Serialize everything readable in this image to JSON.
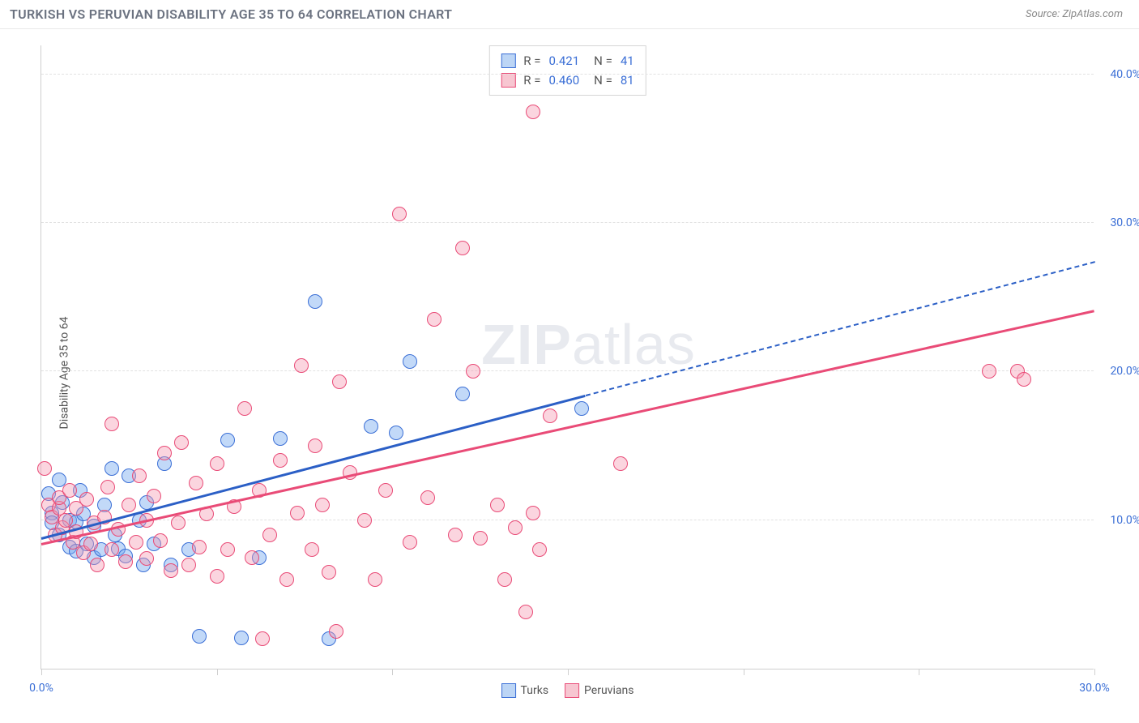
{
  "header": {
    "title": "TURKISH VS PERUVIAN DISABILITY AGE 35 TO 64 CORRELATION CHART",
    "source_prefix": "Source: ",
    "source_name": "ZipAtlas.com"
  },
  "chart": {
    "type": "scatter",
    "ylabel": "Disability Age 35 to 64",
    "watermark_a": "ZIP",
    "watermark_b": "atlas",
    "background_color": "#ffffff",
    "grid_color": "#e2e2e2",
    "axis_color": "#cfcfcf",
    "tick_label_color": "#3b6fd6",
    "xlim": [
      0,
      30
    ],
    "ylim": [
      0,
      42
    ],
    "yticks": [
      {
        "v": 10,
        "label": "10.0%"
      },
      {
        "v": 20,
        "label": "20.0%"
      },
      {
        "v": 30,
        "label": "30.0%"
      },
      {
        "v": 40,
        "label": "40.0%"
      }
    ],
    "xticks_major": [
      0,
      5,
      10,
      15,
      20,
      25,
      30
    ],
    "xtick_labels": [
      {
        "v": 0,
        "label": "0.0%"
      },
      {
        "v": 30,
        "label": "30.0%"
      }
    ],
    "legend": {
      "r_label": "R =",
      "n_label": "N =",
      "rows": [
        {
          "swatch_fill": "#bcd5f5",
          "swatch_stroke": "#3b6fd6",
          "r": "0.421",
          "n": "41"
        },
        {
          "swatch_fill": "#f7c6d1",
          "swatch_stroke": "#e94b77",
          "r": "0.460",
          "n": "81"
        }
      ]
    },
    "bottom_legend": [
      {
        "swatch_fill": "#bcd5f5",
        "swatch_stroke": "#3b6fd6",
        "label": "Turks"
      },
      {
        "swatch_fill": "#f7c6d1",
        "swatch_stroke": "#e94b77",
        "label": "Peruvians"
      }
    ],
    "series": [
      {
        "name": "Turks",
        "dot_fill": "rgba(120,170,240,0.45)",
        "dot_stroke": "#3b6fd6",
        "dot_radius": 9,
        "line_color": "#2b5fc6",
        "trend": {
          "x1": 0,
          "y1": 8.7,
          "x2_solid": 15.5,
          "x2_dash": 30,
          "y2": 27.3
        },
        "points": [
          [
            0.2,
            11.8
          ],
          [
            0.3,
            10.5
          ],
          [
            0.3,
            9.8
          ],
          [
            0.5,
            12.7
          ],
          [
            0.5,
            9.0
          ],
          [
            0.6,
            11.2
          ],
          [
            0.8,
            8.2
          ],
          [
            0.8,
            10.0
          ],
          [
            1.0,
            9.9
          ],
          [
            1.0,
            7.9
          ],
          [
            1.1,
            12.0
          ],
          [
            1.2,
            10.4
          ],
          [
            1.3,
            8.4
          ],
          [
            1.5,
            7.5
          ],
          [
            1.5,
            9.6
          ],
          [
            1.7,
            8.0
          ],
          [
            1.8,
            11.0
          ],
          [
            2.0,
            13.5
          ],
          [
            2.1,
            9.0
          ],
          [
            2.2,
            8.1
          ],
          [
            2.4,
            7.6
          ],
          [
            2.5,
            13.0
          ],
          [
            2.8,
            10.0
          ],
          [
            2.9,
            7.0
          ],
          [
            3.0,
            11.2
          ],
          [
            3.2,
            8.4
          ],
          [
            3.5,
            13.8
          ],
          [
            3.7,
            7.0
          ],
          [
            4.2,
            8.0
          ],
          [
            4.5,
            2.2
          ],
          [
            5.3,
            15.4
          ],
          [
            5.7,
            2.1
          ],
          [
            6.2,
            7.5
          ],
          [
            6.8,
            15.5
          ],
          [
            7.8,
            24.7
          ],
          [
            8.2,
            2.0
          ],
          [
            9.4,
            16.3
          ],
          [
            10.1,
            15.9
          ],
          [
            10.5,
            20.7
          ],
          [
            12.0,
            18.5
          ],
          [
            15.4,
            17.5
          ]
        ]
      },
      {
        "name": "Peruvians",
        "dot_fill": "rgba(245,150,175,0.40)",
        "dot_stroke": "#e94b77",
        "dot_radius": 9,
        "line_color": "#e94b77",
        "trend": {
          "x1": 0,
          "y1": 8.3,
          "x2_solid": 30,
          "x2_dash": 30,
          "y2": 24.0
        },
        "points": [
          [
            0.1,
            13.5
          ],
          [
            0.2,
            11.0
          ],
          [
            0.3,
            10.2
          ],
          [
            0.4,
            9.0
          ],
          [
            0.5,
            10.8
          ],
          [
            0.5,
            11.5
          ],
          [
            0.6,
            9.5
          ],
          [
            0.7,
            10.0
          ],
          [
            0.8,
            12.0
          ],
          [
            0.9,
            8.5
          ],
          [
            1.0,
            10.8
          ],
          [
            1.0,
            9.2
          ],
          [
            1.2,
            7.8
          ],
          [
            1.3,
            11.4
          ],
          [
            1.4,
            8.4
          ],
          [
            1.5,
            9.8
          ],
          [
            1.6,
            7.0
          ],
          [
            1.8,
            10.2
          ],
          [
            1.9,
            12.2
          ],
          [
            2.0,
            8.0
          ],
          [
            2.0,
            16.5
          ],
          [
            2.2,
            9.4
          ],
          [
            2.4,
            7.2
          ],
          [
            2.5,
            11.0
          ],
          [
            2.7,
            8.5
          ],
          [
            2.8,
            13.0
          ],
          [
            3.0,
            7.4
          ],
          [
            3.0,
            10.0
          ],
          [
            3.2,
            11.6
          ],
          [
            3.4,
            8.6
          ],
          [
            3.5,
            14.5
          ],
          [
            3.7,
            6.6
          ],
          [
            3.9,
            9.8
          ],
          [
            4.0,
            15.2
          ],
          [
            4.2,
            7.0
          ],
          [
            4.4,
            12.5
          ],
          [
            4.5,
            8.2
          ],
          [
            4.7,
            10.4
          ],
          [
            5.0,
            6.2
          ],
          [
            5.0,
            13.8
          ],
          [
            5.3,
            8.0
          ],
          [
            5.5,
            10.9
          ],
          [
            5.8,
            17.5
          ],
          [
            6.0,
            7.5
          ],
          [
            6.2,
            12.0
          ],
          [
            6.3,
            2.0
          ],
          [
            6.5,
            9.0
          ],
          [
            6.8,
            14.0
          ],
          [
            7.0,
            6.0
          ],
          [
            7.3,
            10.5
          ],
          [
            7.4,
            20.4
          ],
          [
            7.7,
            8.0
          ],
          [
            7.8,
            15.0
          ],
          [
            8.0,
            11.0
          ],
          [
            8.2,
            6.5
          ],
          [
            8.4,
            2.5
          ],
          [
            8.5,
            19.3
          ],
          [
            8.8,
            13.2
          ],
          [
            9.2,
            10.0
          ],
          [
            9.5,
            6.0
          ],
          [
            9.8,
            12.0
          ],
          [
            10.2,
            30.6
          ],
          [
            10.5,
            8.5
          ],
          [
            11.0,
            11.5
          ],
          [
            11.2,
            23.5
          ],
          [
            11.8,
            9.0
          ],
          [
            12.0,
            28.3
          ],
          [
            12.3,
            20.0
          ],
          [
            12.5,
            8.8
          ],
          [
            13.0,
            11.0
          ],
          [
            13.2,
            6.0
          ],
          [
            13.5,
            9.5
          ],
          [
            13.8,
            3.8
          ],
          [
            14.0,
            10.5
          ],
          [
            14.0,
            37.5
          ],
          [
            14.2,
            8.0
          ],
          [
            14.5,
            17.0
          ],
          [
            16.5,
            13.8
          ],
          [
            27.0,
            20.0
          ],
          [
            27.8,
            20.0
          ],
          [
            28.0,
            19.5
          ]
        ]
      }
    ]
  }
}
